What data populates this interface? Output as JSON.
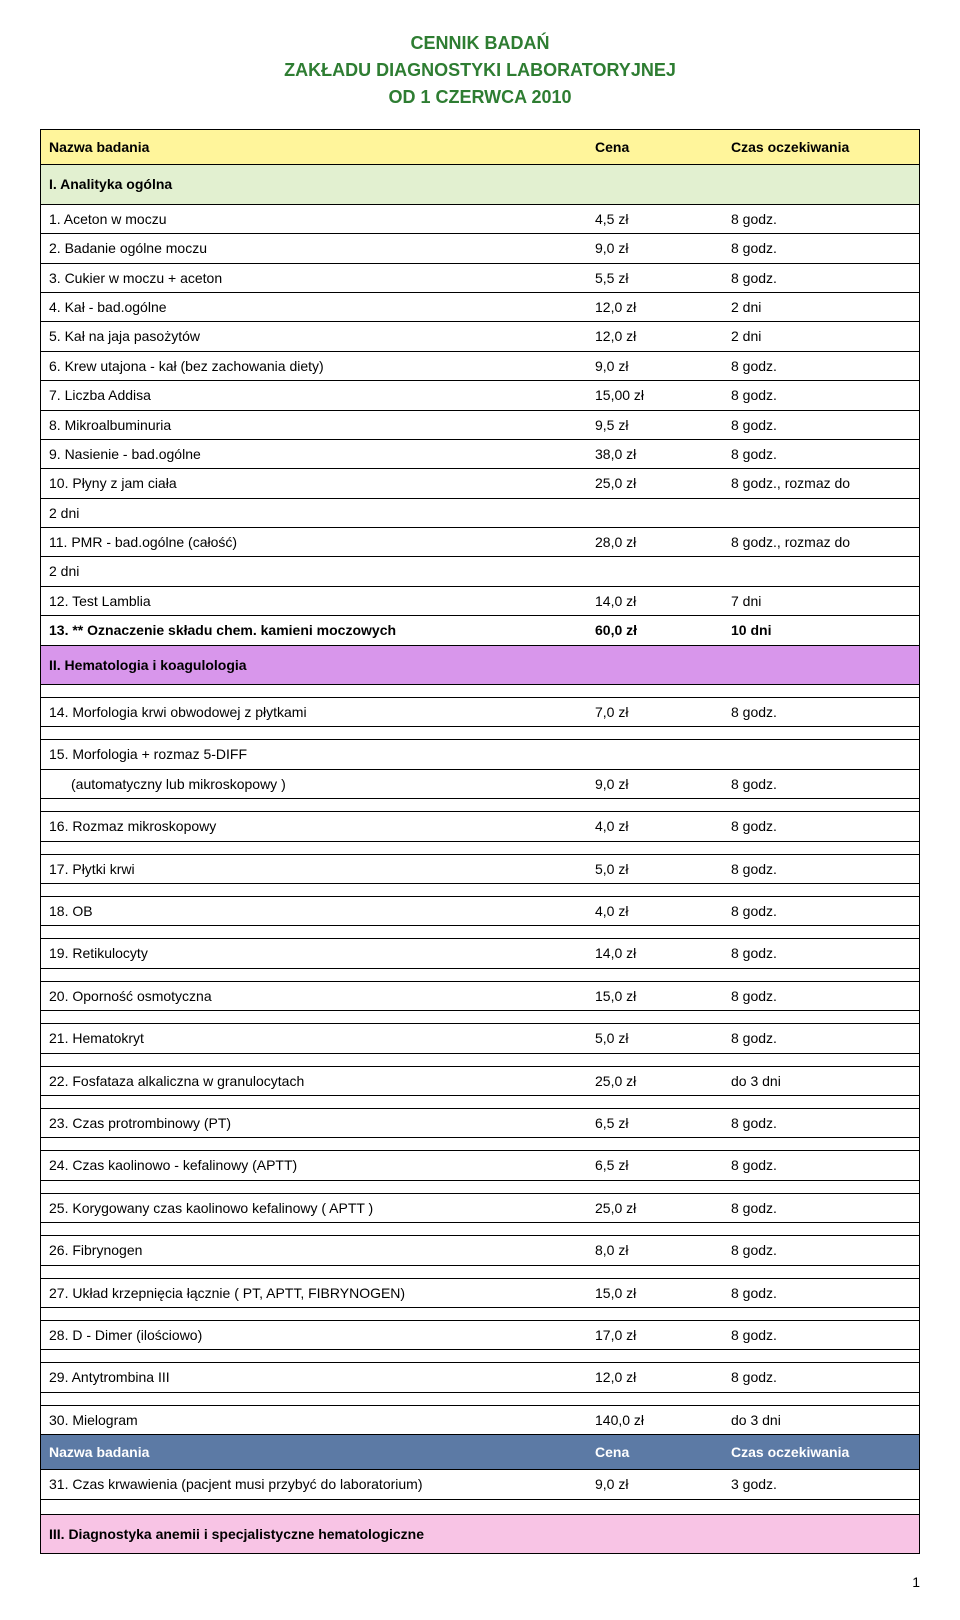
{
  "colors": {
    "title": "#2e7d32",
    "header_bg": "#fff59b",
    "section1_bg": "#e2f0d0",
    "section2_bg": "#d896eb",
    "section3_bg": "#f8c4e5",
    "inner_header_bg": "#5c7aa5"
  },
  "title": {
    "line1": "CENNIK BADAŃ",
    "line2": "ZAKŁADU DIAGNOSTYKI LABORATORYJNEJ",
    "line3": "OD 1 CZERWCA 2010"
  },
  "header": {
    "name": "Nazwa badania",
    "price": "Cena",
    "time": "Czas oczekiwania"
  },
  "section1": {
    "title": "I. Analityka ogólna"
  },
  "s1_rows": [
    {
      "name": "1. Aceton w moczu",
      "price": "4,5 zł",
      "time": "8 godz."
    },
    {
      "name": "2. Badanie ogólne moczu",
      "price": "9,0 zł",
      "time": "8 godz."
    },
    {
      "name": "3. Cukier w moczu + aceton",
      "price": "5,5 zł",
      "time": "8 godz."
    },
    {
      "name": "4. Kał - bad.ogólne",
      "price": "12,0 zł",
      "time": "2 dni"
    },
    {
      "name": "5. Kał na jaja pasożytów",
      "price": "12,0 zł",
      "time": "2 dni"
    },
    {
      "name": "6. Krew utajona - kał (bez zachowania diety)",
      "price": "9,0 zł",
      "time": "8 godz."
    },
    {
      "name": "7. Liczba Addisa",
      "price": "15,00 zł",
      "time": "8 godz."
    },
    {
      "name": "8. Mikroalbuminuria",
      "price": "9,5 zł",
      "time": "8 godz."
    },
    {
      "name": "9. Nasienie - bad.ogólne",
      "price": "38,0 zł",
      "time": "8 godz."
    },
    {
      "name": "10. Płyny z jam ciała",
      "price": "25,0 zł",
      "time": "8 godz., rozmaz do",
      "extra": "2 dni"
    },
    {
      "name": "11. PMR - bad.ogólne (całość)",
      "price": "28,0 zł",
      "time": "8 godz., rozmaz do",
      "extra": "2 dni"
    },
    {
      "name": "12. Test Lamblia",
      "price": "14,0 zł",
      "time": "7 dni"
    },
    {
      "name": "13. ** Oznaczenie składu chem. kamieni moczowych",
      "price": "60,0 zł",
      "time": "10 dni",
      "bold": true
    }
  ],
  "section2": {
    "title": "II. Hematologia i koagulologia"
  },
  "s2_rows": [
    {
      "name": "14. Morfologia krwi obwodowej z płytkami",
      "price": "7,0 zł",
      "time": "8 godz."
    },
    {
      "name": "15. Morfologia + rozmaz 5-DIFF",
      "sub": "(automatyczny lub mikroskopowy )",
      "price": "9,0 zł",
      "time": "8 godz."
    },
    {
      "name": "16. Rozmaz mikroskopowy",
      "price": "4,0 zł",
      "time": "8 godz."
    },
    {
      "name": "17. Płytki krwi",
      "price": "5,0 zł",
      "time": "8 godz."
    },
    {
      "name": "18. OB",
      "price": "4,0 zł",
      "time": "8 godz."
    },
    {
      "name": "19. Retikulocyty",
      "price": "14,0 zł",
      "time": "8 godz."
    },
    {
      "name": "20. Oporność osmotyczna",
      "price": "15,0 zł",
      "time": "8 godz."
    },
    {
      "name": "21. Hematokryt",
      "price": "5,0 zł",
      "time": "8 godz."
    },
    {
      "name": "22. Fosfataza alkaliczna w granulocytach",
      "price": "25,0 zł",
      "time": "do 3 dni"
    },
    {
      "name": "23. Czas protrombinowy (PT)",
      "price": "6,5 zł",
      "time": "8 godz."
    },
    {
      "name": "24. Czas kaolinowo - kefalinowy (APTT)",
      "price": "6,5 zł",
      "time": "8 godz."
    },
    {
      "name": "25. Korygowany czas kaolinowo kefalinowy ( APTT )",
      "price": "25,0 zł",
      "time": "8 godz."
    },
    {
      "name": "26. Fibrynogen",
      "price": "8,0 zł",
      "time": "8 godz."
    },
    {
      "name": "27. Układ krzepnięcia łącznie ( PT, APTT, FIBRYNOGEN)",
      "price": "15,0 zł",
      "time": "8 godz."
    },
    {
      "name": "28. D - Dimer (ilościowo)",
      "price": "17,0 zł",
      "time": "8 godz."
    },
    {
      "name": "29. Antytrombina III",
      "price": "12,0 zł",
      "time": "8 godz."
    },
    {
      "name": "30. Mielogram",
      "price": "140,0 zł",
      "time": "do 3 dni"
    }
  ],
  "inner_header": {
    "name": "Nazwa badania",
    "price": "Cena",
    "time": "Czas oczekiwania"
  },
  "row31": {
    "name": "31. Czas krwawienia (pacjent musi przybyć do laboratorium)",
    "price": "9,0 zł",
    "time": "3 godz."
  },
  "section3": {
    "title": "III. Diagnostyka anemii i specjalistyczne hematologiczne"
  },
  "page_number": "1"
}
